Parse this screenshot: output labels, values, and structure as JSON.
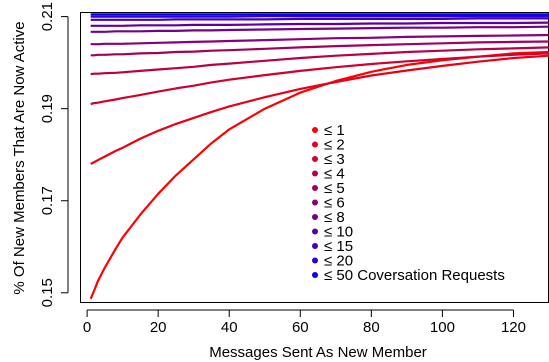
{
  "chart_data": {
    "type": "line",
    "xlabel": "Messages Sent As New Member",
    "ylabel": "% Of New Members That Are Now Active",
    "xlim": [
      -2,
      130
    ],
    "ylim": [
      0.148,
      0.211
    ],
    "xticks": [
      0,
      20,
      40,
      60,
      80,
      100,
      120
    ],
    "xtick_labels": [
      "0",
      "20",
      "40",
      "60",
      "80",
      "100",
      "120"
    ],
    "yticks": [
      0.15,
      0.17,
      0.19,
      0.21
    ],
    "ytick_labels": [
      "0.15",
      "0.17",
      "0.19",
      "0.21"
    ],
    "legend_position": "center",
    "x": [
      1,
      2,
      3,
      5,
      8,
      10,
      15,
      20,
      25,
      30,
      35,
      40,
      50,
      60,
      70,
      80,
      90,
      100,
      110,
      120,
      130
    ],
    "series": [
      {
        "name": "≤ 1",
        "color": "#ff0000",
        "values": [
          0.1487,
          0.1505,
          0.1525,
          0.1555,
          0.1595,
          0.162,
          0.167,
          0.1715,
          0.1755,
          0.179,
          0.1825,
          0.1855,
          0.19,
          0.1935,
          0.196,
          0.198,
          0.1995,
          0.2005,
          0.2013,
          0.202,
          0.2023
        ]
      },
      {
        "name": "≤ 2",
        "color": "#e80016",
        "values": [
          0.178,
          0.1784,
          0.1788,
          0.1796,
          0.1808,
          0.1815,
          0.1835,
          0.1852,
          0.1867,
          0.188,
          0.1893,
          0.1905,
          0.1925,
          0.1943,
          0.1958,
          0.1972,
          0.1983,
          0.1993,
          0.2002,
          0.201,
          0.2015
        ]
      },
      {
        "name": "≤ 3",
        "color": "#d1002e",
        "values": [
          0.191,
          0.1912,
          0.1913,
          0.1916,
          0.192,
          0.1923,
          0.193,
          0.1937,
          0.1944,
          0.195,
          0.1957,
          0.1963,
          0.1973,
          0.1982,
          0.199,
          0.1997,
          0.2003,
          0.2008,
          0.2013,
          0.2017,
          0.202
        ]
      },
      {
        "name": "≤ 4",
        "color": "#b90045",
        "values": [
          0.1975,
          0.1976,
          0.1976,
          0.1977,
          0.1978,
          0.1979,
          0.1982,
          0.1985,
          0.1988,
          0.1991,
          0.1995,
          0.1998,
          0.2004,
          0.201,
          0.2015,
          0.2019,
          0.2023,
          0.2026,
          0.2029,
          0.2031,
          0.2033
        ]
      },
      {
        "name": "≤ 5",
        "color": "#a2005d",
        "values": [
          0.2016,
          0.2016,
          0.2017,
          0.2017,
          0.2018,
          0.2018,
          0.202,
          0.2021,
          0.2023,
          0.2024,
          0.2026,
          0.2027,
          0.203,
          0.2033,
          0.2036,
          0.2038,
          0.204,
          0.2042,
          0.2044,
          0.2045,
          0.2046
        ]
      },
      {
        "name": "≤ 6",
        "color": "#8b0074",
        "values": [
          0.204,
          0.204,
          0.204,
          0.2041,
          0.2041,
          0.2041,
          0.2042,
          0.2043,
          0.2044,
          0.2045,
          0.2046,
          0.2047,
          0.2049,
          0.2051,
          0.2053,
          0.2054,
          0.2056,
          0.2057,
          0.2058,
          0.2059,
          0.206
        ]
      },
      {
        "name": "≤ 8",
        "color": "#74008b",
        "values": [
          0.2067,
          0.2067,
          0.2067,
          0.2067,
          0.2068,
          0.2068,
          0.2068,
          0.2069,
          0.2069,
          0.207,
          0.207,
          0.2071,
          0.2072,
          0.2073,
          0.2074,
          0.2075,
          0.2076,
          0.2076,
          0.2077,
          0.2077,
          0.2078
        ]
      },
      {
        "name": "≤ 10",
        "color": "#5d00a2",
        "values": [
          0.208,
          0.208,
          0.208,
          0.208,
          0.208,
          0.208,
          0.2081,
          0.2081,
          0.2081,
          0.2082,
          0.2082,
          0.2082,
          0.2083,
          0.2084,
          0.2084,
          0.2085,
          0.2085,
          0.2086,
          0.2086,
          0.2086,
          0.2087
        ]
      },
      {
        "name": "≤ 15",
        "color": "#4500b9",
        "values": [
          0.2093,
          0.2093,
          0.2093,
          0.2093,
          0.2093,
          0.2093,
          0.2093,
          0.2093,
          0.2094,
          0.2094,
          0.2094,
          0.2094,
          0.2094,
          0.2095,
          0.2095,
          0.2095,
          0.2095,
          0.2095,
          0.2096,
          0.2096,
          0.2096
        ]
      },
      {
        "name": "≤ 20",
        "color": "#2e00d1",
        "values": [
          0.21,
          0.21,
          0.21,
          0.21,
          0.21,
          0.21,
          0.21,
          0.21,
          0.21,
          0.21,
          0.21,
          0.21,
          0.2101,
          0.2101,
          0.2101,
          0.2101,
          0.2101,
          0.2101,
          0.2101,
          0.2101,
          0.2101
        ]
      },
      {
        "name": "≤ 50 Coversation Requests",
        "color": "#0000ff",
        "values": [
          0.2105,
          0.2105,
          0.2105,
          0.2105,
          0.2105,
          0.2105,
          0.2105,
          0.2105,
          0.2105,
          0.2105,
          0.2105,
          0.2105,
          0.2105,
          0.2105,
          0.2105,
          0.2105,
          0.2105,
          0.2105,
          0.2105,
          0.2105,
          0.2105
        ]
      }
    ]
  }
}
